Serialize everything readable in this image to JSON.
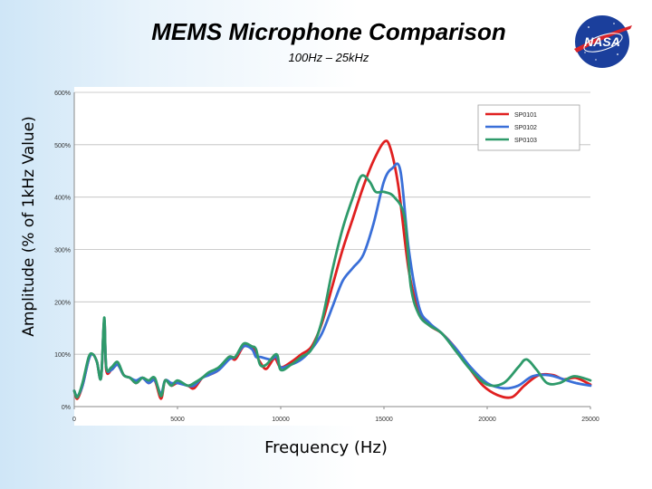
{
  "slide": {
    "title": "MEMS Microphone Comparison",
    "subtitle": "100Hz – 25kHz",
    "logo_text": "NASA"
  },
  "chart_data": {
    "type": "line",
    "xlabel": "Frequency (Hz)",
    "ylabel": "Amplitude (% of 1kHz Value)",
    "xlim": [
      0,
      25000
    ],
    "ylim": [
      0,
      600
    ],
    "x_ticks": [
      0,
      5000,
      10000,
      15000,
      20000,
      25000
    ],
    "y_ticks": [
      0,
      100,
      200,
      300,
      400,
      500,
      600
    ],
    "y_tick_labels": [
      "0%",
      "100%",
      "200%",
      "300%",
      "400%",
      "500%",
      "600%"
    ],
    "grid": true,
    "legend_position": "top-right",
    "series": [
      {
        "name": "SP0101",
        "color": "#e02020",
        "points": [
          [
            0,
            30
          ],
          [
            150,
            15
          ],
          [
            400,
            40
          ],
          [
            700,
            90
          ],
          [
            900,
            100
          ],
          [
            1100,
            85
          ],
          [
            1300,
            55
          ],
          [
            1450,
            165
          ],
          [
            1550,
            70
          ],
          [
            1800,
            70
          ],
          [
            2100,
            80
          ],
          [
            2400,
            60
          ],
          [
            2700,
            55
          ],
          [
            3000,
            45
          ],
          [
            3300,
            55
          ],
          [
            3600,
            45
          ],
          [
            3900,
            50
          ],
          [
            4200,
            15
          ],
          [
            4400,
            50
          ],
          [
            4700,
            40
          ],
          [
            5000,
            45
          ],
          [
            5500,
            40
          ],
          [
            5800,
            35
          ],
          [
            6200,
            55
          ],
          [
            6500,
            60
          ],
          [
            7000,
            70
          ],
          [
            7500,
            95
          ],
          [
            7800,
            90
          ],
          [
            8200,
            115
          ],
          [
            8600,
            115
          ],
          [
            8800,
            100
          ],
          [
            9000,
            85
          ],
          [
            9300,
            72
          ],
          [
            9700,
            92
          ],
          [
            10000,
            75
          ],
          [
            10500,
            85
          ],
          [
            11000,
            100
          ],
          [
            11500,
            115
          ],
          [
            12000,
            160
          ],
          [
            12500,
            230
          ],
          [
            13000,
            300
          ],
          [
            13500,
            360
          ],
          [
            14000,
            420
          ],
          [
            14500,
            470
          ],
          [
            15000,
            505
          ],
          [
            15300,
            495
          ],
          [
            15700,
            420
          ],
          [
            16200,
            260
          ],
          [
            16700,
            180
          ],
          [
            17200,
            155
          ],
          [
            17800,
            140
          ],
          [
            18500,
            110
          ],
          [
            19200,
            70
          ],
          [
            19800,
            40
          ],
          [
            20500,
            22
          ],
          [
            21200,
            18
          ],
          [
            21800,
            40
          ],
          [
            22500,
            60
          ],
          [
            23200,
            60
          ],
          [
            23700,
            52
          ],
          [
            24300,
            55
          ],
          [
            25000,
            42
          ]
        ]
      },
      {
        "name": "SP0102",
        "color": "#3a6fd8",
        "points": [
          [
            0,
            30
          ],
          [
            150,
            20
          ],
          [
            400,
            40
          ],
          [
            700,
            90
          ],
          [
            900,
            100
          ],
          [
            1100,
            85
          ],
          [
            1300,
            55
          ],
          [
            1450,
            165
          ],
          [
            1550,
            75
          ],
          [
            1800,
            70
          ],
          [
            2100,
            80
          ],
          [
            2400,
            60
          ],
          [
            2700,
            55
          ],
          [
            3000,
            50
          ],
          [
            3300,
            55
          ],
          [
            3600,
            45
          ],
          [
            3900,
            50
          ],
          [
            4200,
            25
          ],
          [
            4400,
            50
          ],
          [
            4700,
            45
          ],
          [
            5000,
            45
          ],
          [
            5500,
            40
          ],
          [
            5800,
            40
          ],
          [
            6200,
            55
          ],
          [
            6500,
            60
          ],
          [
            7000,
            70
          ],
          [
            7500,
            90
          ],
          [
            7800,
            95
          ],
          [
            8200,
            115
          ],
          [
            8600,
            110
          ],
          [
            8800,
            95
          ],
          [
            9000,
            95
          ],
          [
            9500,
            90
          ],
          [
            9800,
            95
          ],
          [
            10000,
            75
          ],
          [
            10500,
            80
          ],
          [
            11000,
            90
          ],
          [
            11500,
            110
          ],
          [
            12000,
            140
          ],
          [
            12500,
            190
          ],
          [
            13000,
            240
          ],
          [
            13500,
            265
          ],
          [
            14000,
            290
          ],
          [
            14500,
            350
          ],
          [
            15000,
            430
          ],
          [
            15400,
            455
          ],
          [
            15800,
            450
          ],
          [
            16200,
            300
          ],
          [
            16700,
            190
          ],
          [
            17200,
            160
          ],
          [
            17800,
            140
          ],
          [
            18500,
            110
          ],
          [
            19200,
            75
          ],
          [
            20000,
            45
          ],
          [
            20800,
            35
          ],
          [
            21500,
            40
          ],
          [
            22200,
            58
          ],
          [
            23000,
            60
          ],
          [
            23700,
            52
          ],
          [
            24300,
            45
          ],
          [
            25000,
            40
          ]
        ]
      },
      {
        "name": "SP0103",
        "color": "#2e9a6a",
        "points": [
          [
            0,
            30
          ],
          [
            150,
            18
          ],
          [
            400,
            45
          ],
          [
            700,
            95
          ],
          [
            900,
            100
          ],
          [
            1100,
            85
          ],
          [
            1300,
            55
          ],
          [
            1450,
            170
          ],
          [
            1550,
            75
          ],
          [
            1800,
            75
          ],
          [
            2100,
            85
          ],
          [
            2400,
            60
          ],
          [
            2700,
            55
          ],
          [
            3000,
            45
          ],
          [
            3300,
            55
          ],
          [
            3600,
            50
          ],
          [
            3900,
            55
          ],
          [
            4200,
            20
          ],
          [
            4400,
            50
          ],
          [
            4700,
            40
          ],
          [
            5000,
            50
          ],
          [
            5500,
            40
          ],
          [
            5800,
            45
          ],
          [
            6200,
            55
          ],
          [
            6500,
            65
          ],
          [
            7000,
            75
          ],
          [
            7500,
            95
          ],
          [
            7800,
            95
          ],
          [
            8200,
            120
          ],
          [
            8600,
            115
          ],
          [
            8800,
            110
          ],
          [
            9000,
            80
          ],
          [
            9300,
            80
          ],
          [
            9800,
            100
          ],
          [
            10000,
            70
          ],
          [
            10500,
            80
          ],
          [
            11000,
            95
          ],
          [
            11500,
            110
          ],
          [
            12000,
            165
          ],
          [
            12500,
            260
          ],
          [
            13000,
            340
          ],
          [
            13500,
            400
          ],
          [
            13900,
            440
          ],
          [
            14300,
            430
          ],
          [
            14600,
            410
          ],
          [
            15000,
            410
          ],
          [
            15500,
            400
          ],
          [
            16000,
            360
          ],
          [
            16300,
            230
          ],
          [
            16700,
            175
          ],
          [
            17200,
            155
          ],
          [
            17800,
            140
          ],
          [
            18500,
            105
          ],
          [
            19200,
            70
          ],
          [
            20000,
            42
          ],
          [
            20800,
            45
          ],
          [
            21500,
            75
          ],
          [
            21900,
            90
          ],
          [
            22400,
            70
          ],
          [
            22900,
            45
          ],
          [
            23500,
            45
          ],
          [
            24200,
            58
          ],
          [
            25000,
            50
          ]
        ]
      }
    ]
  }
}
